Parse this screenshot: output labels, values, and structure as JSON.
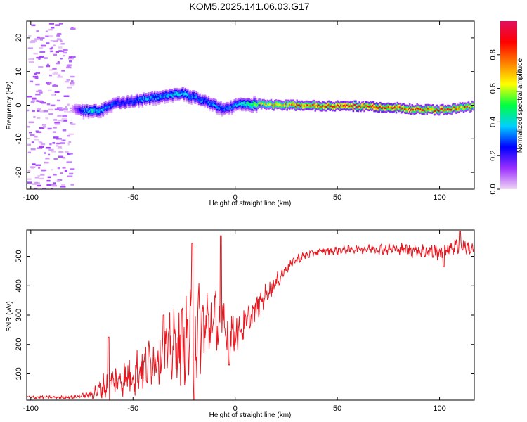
{
  "figure": {
    "title": "KOM5.2025.141.06.03.G17"
  },
  "chart_data": [
    {
      "type": "heatmap",
      "title": "KOM5.2025.141.06.03.G17",
      "xlabel": "Height of straight line (km)",
      "ylabel": "Frequency (Hz)",
      "xlim": [
        -102,
        117
      ],
      "ylim": [
        -25,
        25
      ],
      "xticks": [
        -100,
        -50,
        0,
        50,
        100
      ],
      "yticks": [
        -20,
        -10,
        0,
        10,
        20
      ],
      "colorbar": {
        "label": "Normalized spectral amplitude",
        "range": [
          0,
          1
        ],
        "ticks": [
          0.0,
          0.2,
          0.4,
          0.6,
          0.8
        ],
        "tick_labels": [
          "0.0",
          "0.2",
          "0.4",
          "0.6",
          "0.8"
        ],
        "colormap": [
          "#f0d6f4",
          "#9b30ff",
          "#0000ff",
          "#00d0ff",
          "#00ff40",
          "#ffff00",
          "#ff8000",
          "#ff0000",
          "#e01060"
        ]
      },
      "ridge": {
        "x": [
          -80,
          -75,
          -70,
          -65,
          -60,
          -55,
          -50,
          -45,
          -40,
          -35,
          -30,
          -25,
          -20,
          -15,
          -10,
          -5,
          0,
          5,
          10,
          20,
          30,
          40,
          50,
          60,
          70,
          80,
          90,
          100,
          110,
          117
        ],
        "y": [
          -0.5,
          -1.5,
          -1.5,
          -1.0,
          0.5,
          1.0,
          1.5,
          2.0,
          2.5,
          3.0,
          3.5,
          3.5,
          2.5,
          1.5,
          0.0,
          -1.0,
          0.5,
          0.5,
          0.5,
          0.3,
          0.2,
          0.1,
          0.0,
          0.0,
          -0.3,
          -0.5,
          -1.0,
          -1.2,
          -0.5,
          0.0
        ],
        "amplitude": [
          0.05,
          0.3,
          0.45,
          0.35,
          0.3,
          0.25,
          0.3,
          0.35,
          0.35,
          0.35,
          0.4,
          0.4,
          0.35,
          0.3,
          0.35,
          0.3,
          0.35,
          0.45,
          0.6,
          0.75,
          0.8,
          0.85,
          0.95,
          0.95,
          0.95,
          0.9,
          0.85,
          0.85,
          0.8,
          0.75
        ]
      },
      "noise_region": {
        "x": [
          -102,
          -80
        ],
        "amplitude": 0.08
      }
    },
    {
      "type": "line",
      "xlabel": "Height of straight line (km)",
      "ylabel": "SNR (v/v)",
      "xlim": [
        -102,
        117
      ],
      "ylim": [
        10,
        590
      ],
      "xticks": [
        -100,
        -50,
        0,
        50,
        100
      ],
      "yticks": [
        100,
        200,
        300,
        400,
        500
      ],
      "color": "#e8161e",
      "envelope": {
        "x": [
          -102,
          -90,
          -80,
          -75,
          -70,
          -65,
          -60,
          -55,
          -50,
          -45,
          -40,
          -35,
          -30,
          -25,
          -20,
          -15,
          -10,
          -5,
          0,
          5,
          10,
          15,
          20,
          25,
          30,
          35,
          40,
          50,
          60,
          70,
          80,
          90,
          100,
          110,
          117
        ],
        "mean": [
          20,
          20,
          20,
          25,
          30,
          55,
          70,
          80,
          100,
          120,
          150,
          170,
          190,
          210,
          230,
          260,
          280,
          250,
          240,
          265,
          320,
          370,
          410,
          460,
          490,
          505,
          515,
          520,
          525,
          525,
          525,
          520,
          515,
          540,
          520
        ],
        "amp": [
          8,
          8,
          8,
          10,
          25,
          60,
          90,
          80,
          110,
          110,
          120,
          150,
          170,
          200,
          240,
          200,
          150,
          140,
          100,
          80,
          60,
          50,
          40,
          30,
          25,
          20,
          20,
          20,
          20,
          25,
          30,
          35,
          45,
          40,
          30
        ]
      },
      "peaks": [
        {
          "x": -62,
          "y": 225
        },
        {
          "x": -35,
          "y": 300
        },
        {
          "x": -21,
          "y": 545
        },
        {
          "x": -20,
          "y": 10
        },
        {
          "x": -7,
          "y": 570
        },
        {
          "x": -3,
          "y": 130
        },
        {
          "x": 110,
          "y": 585
        },
        {
          "x": 102,
          "y": 465
        }
      ]
    }
  ]
}
